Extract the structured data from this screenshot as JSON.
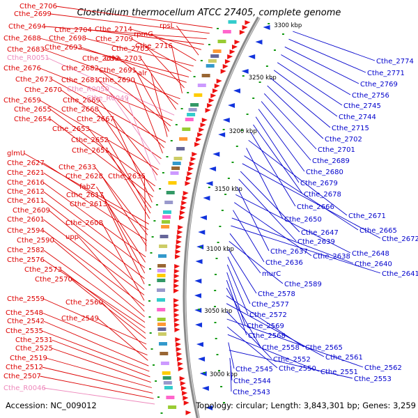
{
  "title": "Clostridium thermocellum ATCC 27405, complete genome",
  "footer": {
    "accession": "Accession: NC_009012",
    "topology": "Topology: circular; Length: 3,843,301 bp; Genes: 3,259"
  },
  "colors": {
    "left_label": "#dd0000",
    "rna_label": "#ee88bb",
    "right_label": "#0000cc",
    "forward_gene": "#ee1111",
    "reverse_gene": "#1133dd",
    "backbone": "#888888",
    "tick": "#119911"
  },
  "kbp_markers": [
    "3300 kbp",
    "3250 kbp",
    "3200 kbp",
    "3150 kbp",
    "3100 kbp",
    "3050 kbp",
    "3000 kbp"
  ],
  "left_labels": [
    {
      "text": "Cthe_2706",
      "type": "gene"
    },
    {
      "text": "Cthe_2699",
      "type": "gene"
    },
    {
      "text": "Cthe_2694",
      "type": "gene"
    },
    {
      "text": "Cthe_2704",
      "type": "gene"
    },
    {
      "text": "Cthe_2714",
      "type": "gene"
    },
    {
      "text": "rpsL",
      "type": "gene"
    },
    {
      "text": "rpmG",
      "type": "gene"
    },
    {
      "text": "Cthe_2698",
      "type": "gene"
    },
    {
      "text": "Cthe_2709",
      "type": "gene"
    },
    {
      "text": "Cthe_2688",
      "type": "gene"
    },
    {
      "text": "Cthe_2693",
      "type": "gene"
    },
    {
      "text": "Cthe_2705",
      "type": "gene"
    },
    {
      "text": "Cthe_2716",
      "type": "gene"
    },
    {
      "text": "Cthe_2683",
      "type": "gene"
    },
    {
      "text": "Cthe_2692",
      "type": "gene"
    },
    {
      "text": "Cthe_2703",
      "type": "gene"
    },
    {
      "text": "Cthe_R0051",
      "type": "rna"
    },
    {
      "text": "Cthe_2676",
      "type": "gene"
    },
    {
      "text": "Cthe_2682",
      "type": "gene"
    },
    {
      "text": "Cthe_2691",
      "type": "gene"
    },
    {
      "text": "alr",
      "type": "gene"
    },
    {
      "text": "Cthe_2673",
      "type": "gene"
    },
    {
      "text": "Cthe_2681",
      "type": "gene"
    },
    {
      "text": "Cthe_2690",
      "type": "gene"
    },
    {
      "text": "Cthe_2670",
      "type": "gene"
    },
    {
      "text": "Cthe_R0050",
      "type": "rna"
    },
    {
      "text": "Cthe_2659",
      "type": "gene"
    },
    {
      "text": "Cthe_2669",
      "type": "gene"
    },
    {
      "text": "Cthe_R0049",
      "type": "rna"
    },
    {
      "text": "Cthe_2655",
      "type": "gene"
    },
    {
      "text": "Cthe_2668",
      "type": "gene"
    },
    {
      "text": "Cthe_2654",
      "type": "gene"
    },
    {
      "text": "Cthe_2667",
      "type": "gene"
    },
    {
      "text": "Cthe_2653",
      "type": "gene"
    },
    {
      "text": "Cthe_2652",
      "type": "gene"
    },
    {
      "text": "Cthe_2651",
      "type": "gene"
    },
    {
      "text": "glmU",
      "type": "gene"
    },
    {
      "text": "Cthe_2627",
      "type": "gene"
    },
    {
      "text": "Cthe_2633",
      "type": "gene"
    },
    {
      "text": "Cthe_2621",
      "type": "gene"
    },
    {
      "text": "Cthe_2628",
      "type": "gene"
    },
    {
      "text": "Cthe_2635",
      "type": "gene"
    },
    {
      "text": "Cthe_2616",
      "type": "gene"
    },
    {
      "text": "fabZ",
      "type": "gene"
    },
    {
      "text": "Cthe_2612",
      "type": "gene"
    },
    {
      "text": "Cthe_2617",
      "type": "gene"
    },
    {
      "text": "Cthe_2611",
      "type": "gene"
    },
    {
      "text": "Cthe_2613",
      "type": "gene"
    },
    {
      "text": "Cthe_2609",
      "type": "gene"
    },
    {
      "text": "Cthe_2601",
      "type": "gene"
    },
    {
      "text": "Cthe_2608",
      "type": "gene"
    },
    {
      "text": "Cthe_2594",
      "type": "gene"
    },
    {
      "text": "upp",
      "type": "gene"
    },
    {
      "text": "Cthe_2590",
      "type": "gene"
    },
    {
      "text": "Cthe_2582",
      "type": "gene"
    },
    {
      "text": "Cthe_2576",
      "type": "gene"
    },
    {
      "text": "Cthe_2573",
      "type": "gene"
    },
    {
      "text": "Cthe_2570",
      "type": "gene"
    },
    {
      "text": "Cthe_2559",
      "type": "gene"
    },
    {
      "text": "Cthe_2560",
      "type": "gene"
    },
    {
      "text": "Cthe_2548",
      "type": "gene"
    },
    {
      "text": "Cthe_2549",
      "type": "gene"
    },
    {
      "text": "Cthe_2542",
      "type": "gene"
    },
    {
      "text": "Cthe_2535",
      "type": "gene"
    },
    {
      "text": "Cthe_2531",
      "type": "gene"
    },
    {
      "text": "Cthe_2525",
      "type": "gene"
    },
    {
      "text": "Cthe_2519",
      "type": "gene"
    },
    {
      "text": "Cthe_2512",
      "type": "gene"
    },
    {
      "text": "Cthe_2507",
      "type": "gene"
    },
    {
      "text": "Cthe_R0046",
      "type": "rna"
    }
  ],
  "right_labels": [
    "Cthe_2774",
    "Cthe_2771",
    "Cthe_2769",
    "Cthe_2756",
    "Cthe_2745",
    "Cthe_2744",
    "Cthe_2715",
    "Cthe_2702",
    "Cthe_2701",
    "Cthe_2689",
    "Cthe_2680",
    "Cthe_2679",
    "Cthe_2678",
    "Cthe_2666",
    "Cthe_2671",
    "Cthe_2650",
    "Cthe_2665",
    "Cthe_2672",
    "Cthe_2647",
    "Cthe_2639",
    "Cthe_2637",
    "Cthe_2648",
    "Cthe_2638",
    "Cthe_2636",
    "Cthe_2640",
    "Cthe_2641",
    "murC",
    "Cthe_2589",
    "Cthe_2578",
    "Cthe_2577",
    "Cthe_2572",
    "Cthe_2569",
    "Cthe_2568",
    "Cthe_2558",
    "Cthe_2565",
    "Cthe_2561",
    "Cthe_2552",
    "Cthe_2562",
    "Cthe_2550",
    "Cthe_2551",
    "Cthe_2545",
    "Cthe_2553",
    "Cthe_2544",
    "Cthe_2543"
  ]
}
